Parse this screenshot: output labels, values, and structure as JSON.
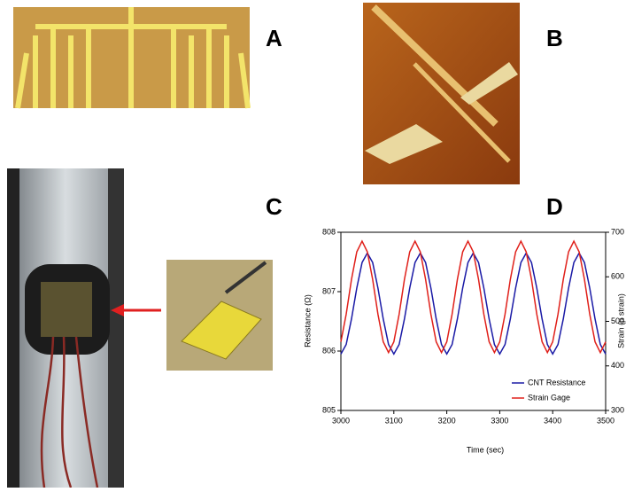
{
  "panels": {
    "a": "A",
    "b": "B",
    "c": "C",
    "d": "D"
  },
  "chart_data": {
    "type": "line",
    "x_label": "Time (sec)",
    "y_label": "Resistance (Ω)",
    "y2_label": "Strain (µ strain)",
    "xlim": [
      3000,
      3500
    ],
    "xticks": [
      3000,
      3100,
      3200,
      3300,
      3400,
      3500
    ],
    "ylim": [
      805,
      808
    ],
    "yticks": [
      805,
      806,
      807,
      808
    ],
    "y2lim": [
      300,
      700
    ],
    "y2ticks": [
      300,
      400,
      500,
      600,
      700
    ],
    "legend": "lower right",
    "x": [
      3000,
      3010,
      3020,
      3030,
      3040,
      3050,
      3060,
      3070,
      3080,
      3090,
      3100,
      3110,
      3120,
      3130,
      3140,
      3150,
      3160,
      3170,
      3180,
      3190,
      3200,
      3210,
      3220,
      3230,
      3240,
      3250,
      3260,
      3270,
      3280,
      3290,
      3300,
      3310,
      3320,
      3330,
      3340,
      3350,
      3360,
      3370,
      3380,
      3390,
      3400,
      3410,
      3420,
      3430,
      3440,
      3450,
      3460,
      3470,
      3480,
      3490,
      3500
    ],
    "series": [
      {
        "name": "CNT Resistance",
        "color": "#1a1aa6",
        "values": [
          805.95,
          806.11,
          806.54,
          807.06,
          807.49,
          807.65,
          807.49,
          807.06,
          806.54,
          806.11,
          805.95,
          806.11,
          806.54,
          807.06,
          807.49,
          807.65,
          807.49,
          807.06,
          806.54,
          806.11,
          805.95,
          806.11,
          806.54,
          807.06,
          807.49,
          807.65,
          807.49,
          807.06,
          806.54,
          806.11,
          805.95,
          806.11,
          806.54,
          807.06,
          807.49,
          807.65,
          807.49,
          807.06,
          806.54,
          806.11,
          805.95,
          806.11,
          806.54,
          807.06,
          807.49,
          807.65,
          807.49,
          807.06,
          806.54,
          806.11,
          805.95
        ]
      },
      {
        "name": "Strain Gage",
        "color": "#e0201a",
        "axis": "y2",
        "values": [
          454,
          516,
          594,
          656,
          680,
          656,
          594,
          516,
          454,
          430,
          454,
          516,
          594,
          656,
          680,
          656,
          594,
          516,
          454,
          430,
          454,
          516,
          594,
          656,
          680,
          656,
          594,
          516,
          454,
          430,
          454,
          516,
          594,
          656,
          680,
          656,
          594,
          516,
          454,
          430,
          454,
          516,
          594,
          656,
          680,
          656,
          594,
          516,
          454,
          430,
          454
        ]
      }
    ]
  }
}
